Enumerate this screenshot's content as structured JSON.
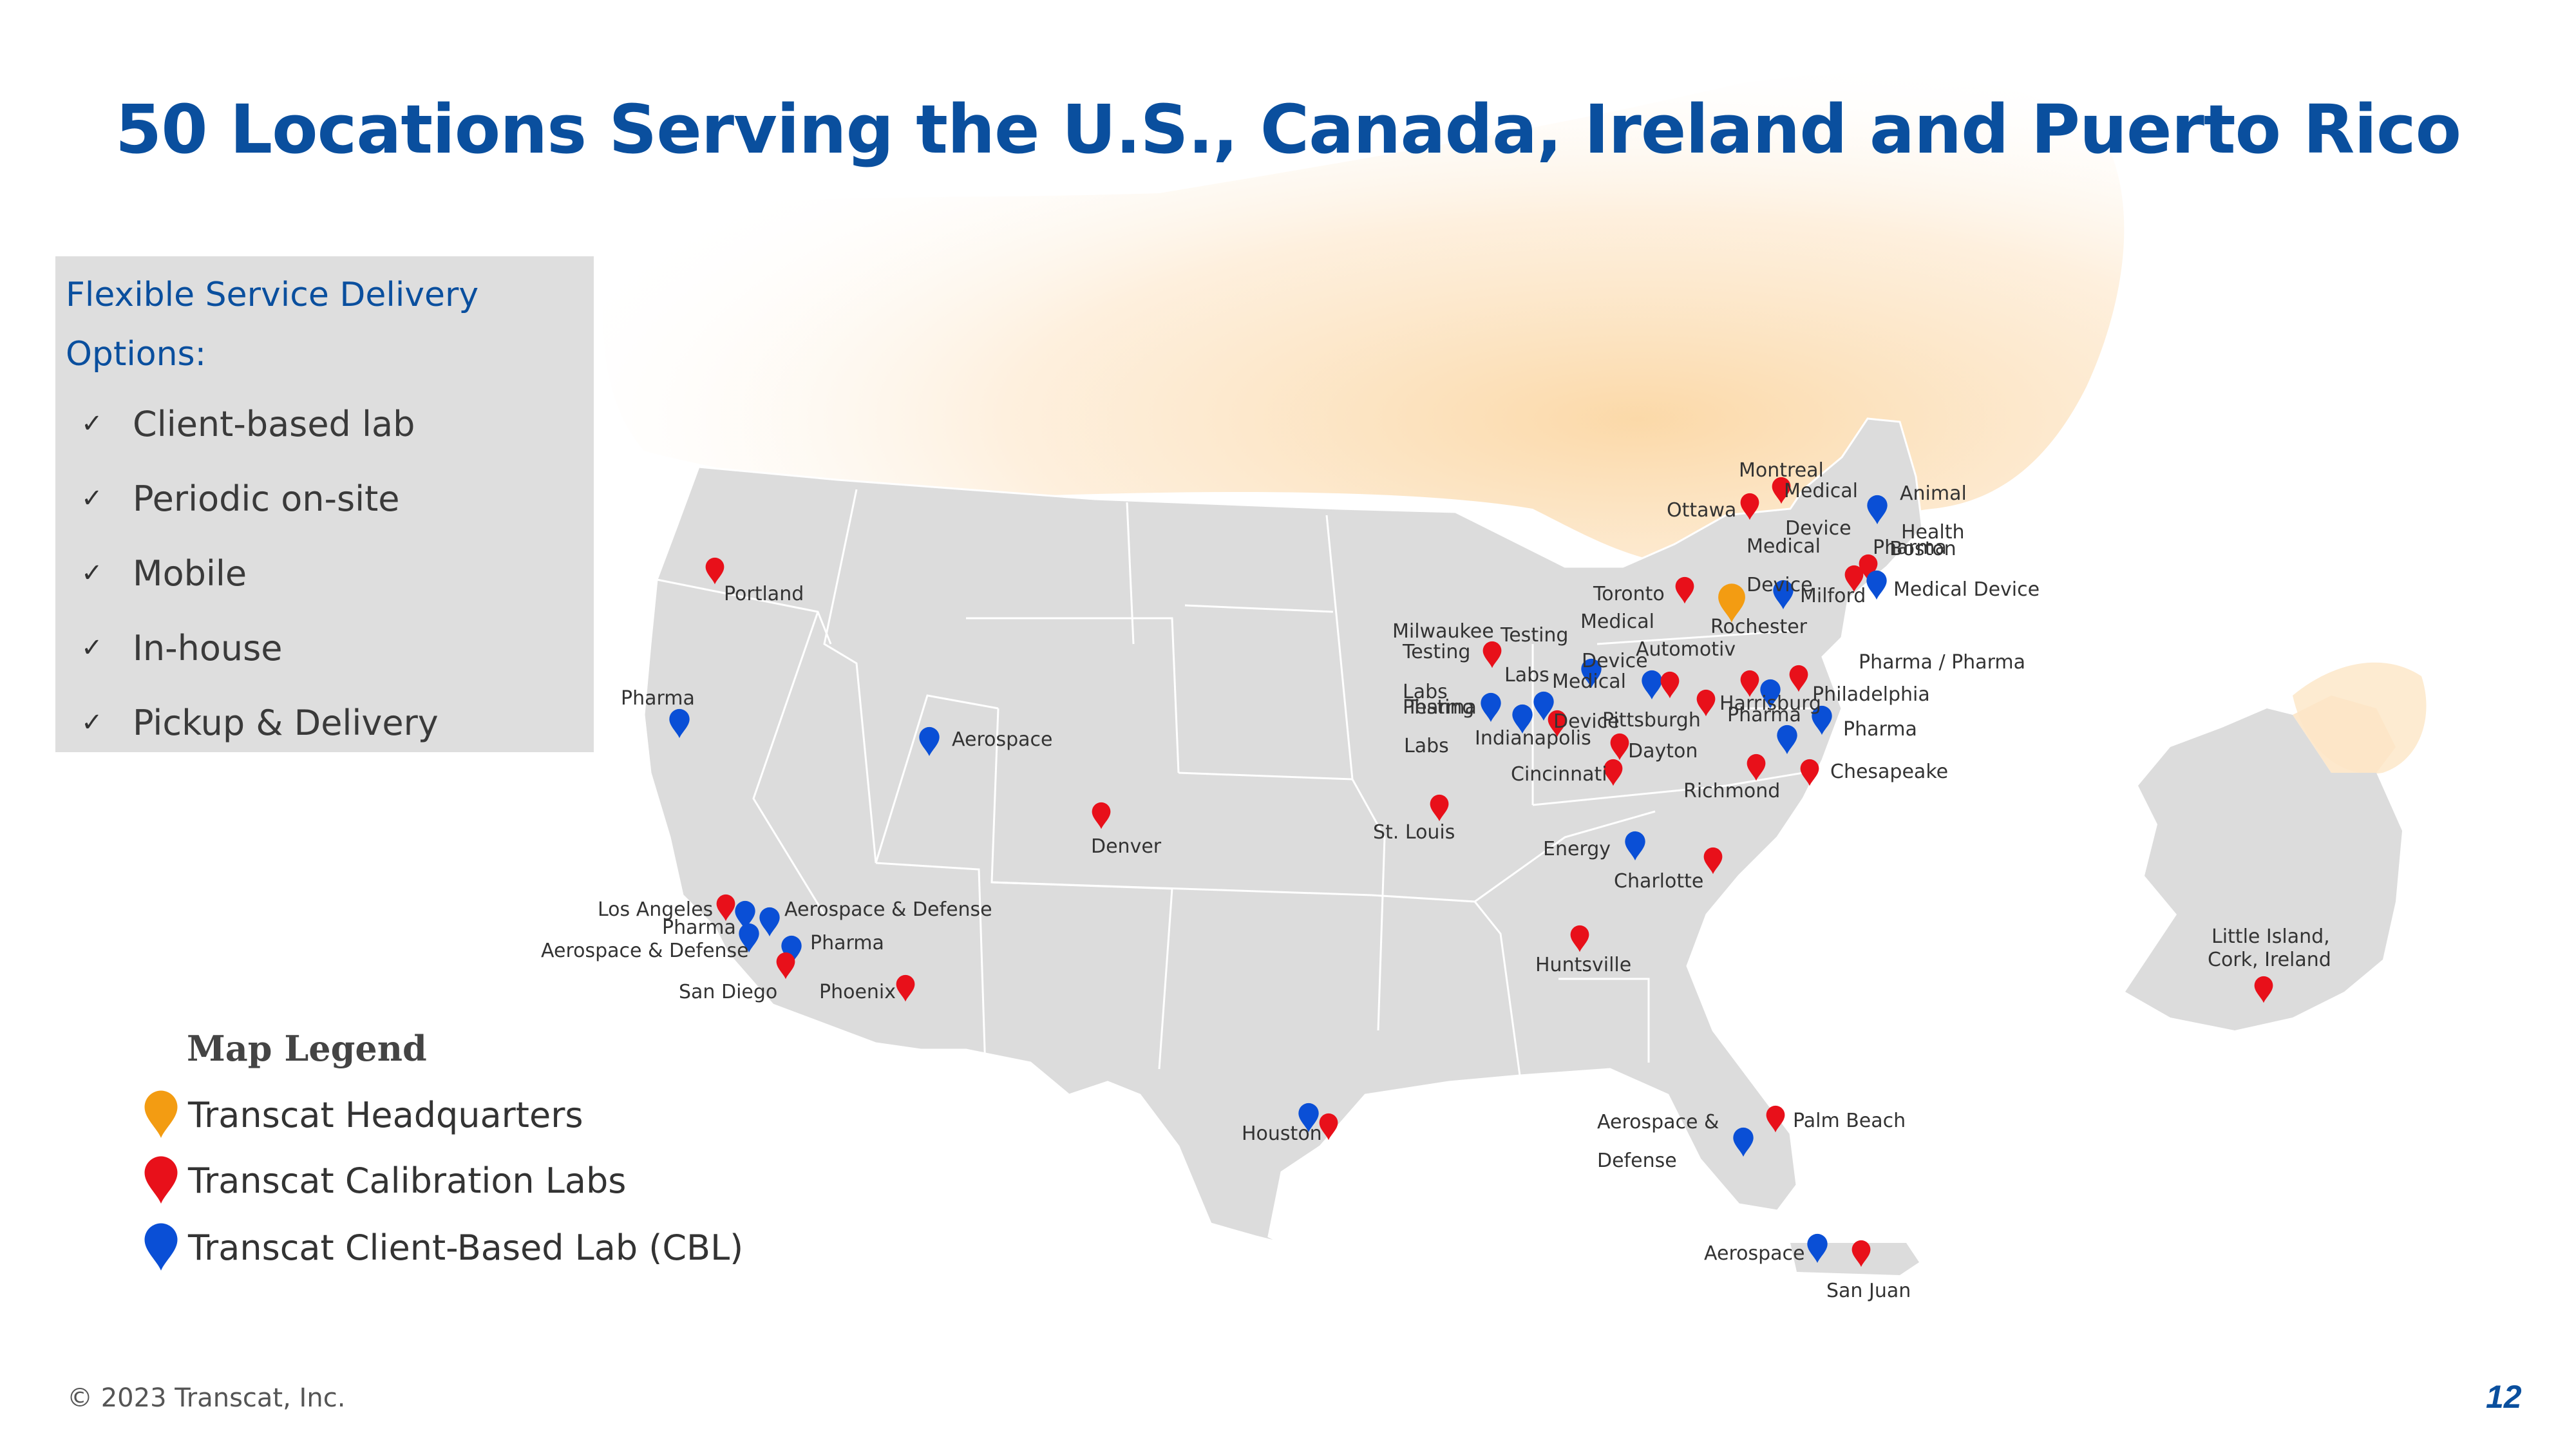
{
  "title": "50 Locations Serving the U.S., Canada, Ireland and Puerto Rico",
  "colors": {
    "title": "#0a4f9e",
    "headquarters": "#f39c12",
    "calibration_lab": "#e8101a",
    "client_based_lab": "#0a4fd6",
    "land": "#dcdcdc",
    "canada": "#fde9cf"
  },
  "options": {
    "heading": "Flexible Service Delivery Options:",
    "items": [
      "Client-based lab",
      "Periodic on-site",
      "Mobile",
      "In-house",
      "Pickup & Delivery"
    ]
  },
  "legend": {
    "title": "Map Legend",
    "items": [
      {
        "label": "Transcat Headquarters",
        "icon": "orange-map-pin-icon"
      },
      {
        "label": "Transcat Calibration Labs",
        "icon": "red-map-pin-icon"
      },
      {
        "label": "Transcat Client-Based Lab (CBL)",
        "icon": "blue-map-pin-icon"
      }
    ]
  },
  "map_labels": [
    "Montreal",
    "Medical",
    "Ottawa",
    "Animal",
    "Health",
    "Device",
    "Medical",
    "Pharma",
    "Boston",
    "Toronto",
    "Device",
    "Milford",
    "Medical Device",
    "Rochester",
    "Medical",
    "Milwaukee",
    "Testing",
    "Testing",
    "Device",
    "Automotiv",
    "Labs",
    "Medical",
    "Pharma / Pharma",
    "Labs",
    "Pharma",
    "Testing",
    "Device",
    "Pittsburgh",
    "Harrisburg",
    "Philadelphia",
    "Pharma",
    "Pharma",
    "Indianapolis",
    "Labs",
    "Dayton",
    "Cincinnati",
    "Chesapeake",
    "Richmond",
    "St. Louis",
    "Energy",
    "Charlotte",
    "Portland",
    "Pharma",
    "Aerospace",
    "Denver",
    "Los Angeles",
    "Aerospace & Defense",
    "Pharma",
    "Aerospace & Defense",
    "Pharma",
    "San Diego",
    "Phoenix",
    "Huntsville",
    "Houston",
    "Aerospace &",
    "Defense",
    "Palm Beach",
    "Aerospace",
    "San Juan",
    "Little Island,",
    "Cork, Ireland"
  ],
  "copyright": "© 2023 Transcat, Inc.",
  "page_number": "12"
}
